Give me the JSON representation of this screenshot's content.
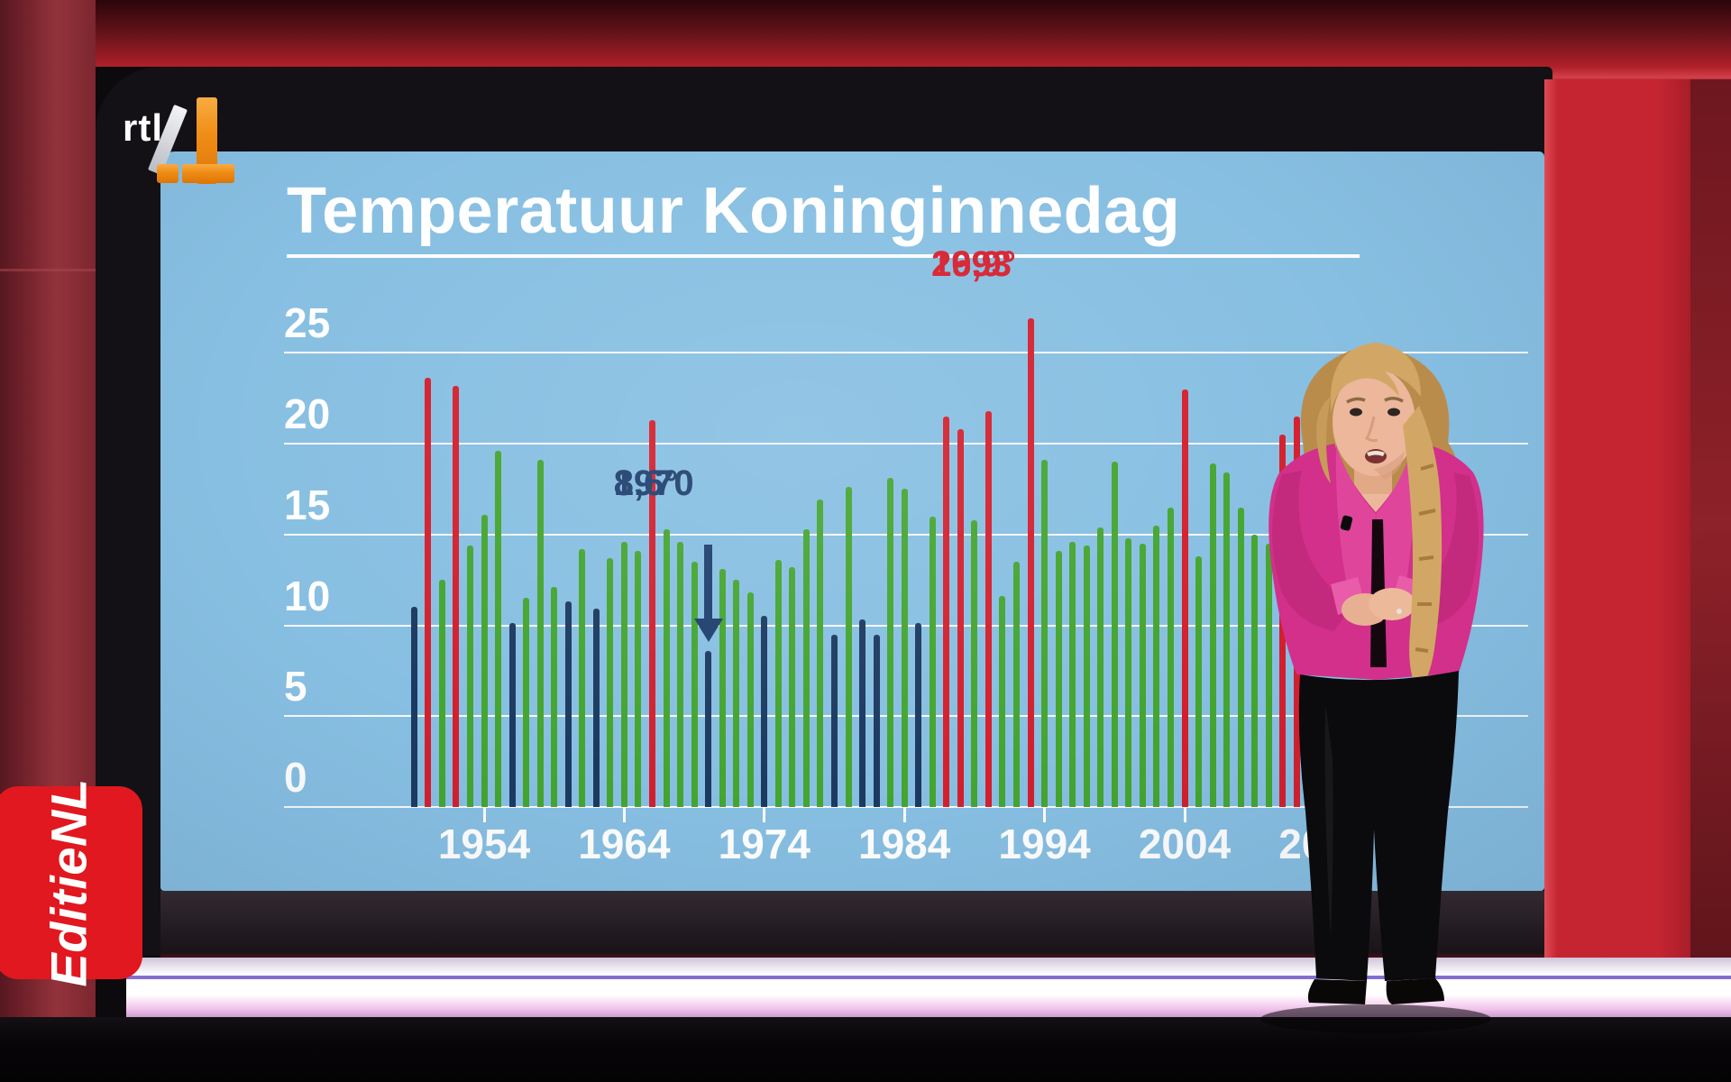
{
  "broadcast": {
    "channel_logo": {
      "text": "rtl",
      "number": "4",
      "orange": "#ef8c15"
    },
    "program_logo": {
      "text": "EditieNL",
      "red": "#e1181f"
    }
  },
  "chart_data": {
    "type": "bar",
    "title": "Temperatuur Koninginnedag",
    "ylabel": "",
    "xlabel": "",
    "ylim": [
      0,
      30
    ],
    "grid": "horizontal white lines, light-blue background",
    "y_ticks": [
      0,
      5,
      10,
      15,
      20,
      25
    ],
    "x_tick_labels": [
      "1954",
      "1964",
      "1974",
      "1984",
      "1994",
      "2004",
      "2014"
    ],
    "years": [
      1949,
      1950,
      1951,
      1952,
      1953,
      1954,
      1955,
      1956,
      1957,
      1958,
      1959,
      1960,
      1961,
      1962,
      1963,
      1964,
      1965,
      1966,
      1967,
      1968,
      1969,
      1970,
      1971,
      1972,
      1973,
      1974,
      1975,
      1976,
      1977,
      1978,
      1979,
      1980,
      1981,
      1982,
      1983,
      1984,
      1985,
      1986,
      1987,
      1988,
      1989,
      1990,
      1991,
      1992,
      1993,
      1994,
      1995,
      1996,
      1997,
      1998,
      1999,
      2000,
      2001,
      2002,
      2003,
      2004,
      2005,
      2006,
      2007,
      2008,
      2009,
      2010,
      2011,
      2012
    ],
    "values": [
      11.0,
      23.6,
      12.5,
      23.2,
      14.4,
      16.1,
      19.6,
      10.1,
      11.5,
      19.1,
      12.1,
      11.3,
      14.2,
      10.9,
      13.7,
      14.6,
      14.1,
      21.3,
      15.3,
      14.6,
      13.5,
      8.6,
      13.1,
      12.5,
      11.8,
      10.5,
      13.6,
      13.2,
      15.3,
      16.9,
      9.5,
      17.6,
      10.3,
      9.5,
      18.1,
      17.5,
      10.1,
      16.0,
      21.5,
      20.8,
      15.8,
      21.8,
      11.6,
      13.5,
      26.9,
      19.1,
      14.1,
      14.6,
      14.4,
      15.4,
      19.0,
      14.8,
      14.5,
      15.5,
      16.5,
      23.0,
      13.8,
      18.9,
      18.4,
      16.5,
      15.0,
      14.5,
      20.5,
      21.5
    ],
    "colors": [
      "n",
      "r",
      "g",
      "r",
      "g",
      "g",
      "g",
      "n",
      "g",
      "g",
      "g",
      "n",
      "g",
      "n",
      "g",
      "g",
      "g",
      "r",
      "g",
      "g",
      "g",
      "n",
      "g",
      "g",
      "g",
      "n",
      "g",
      "g",
      "g",
      "g",
      "n",
      "g",
      "n",
      "n",
      "g",
      "g",
      "n",
      "g",
      "r",
      "r",
      "g",
      "r",
      "g",
      "g",
      "r",
      "g",
      "g",
      "g",
      "g",
      "g",
      "g",
      "g",
      "g",
      "g",
      "g",
      "r",
      "g",
      "g",
      "g",
      "g",
      "g",
      "g",
      "r",
      "r"
    ],
    "palette": {
      "g": "#44a52f",
      "r": "#d41f2d",
      "n": "#1c3a60"
    },
    "annotations": [
      {
        "year_label": "1993",
        "value_label": "26,9°",
        "kind": "warm"
      },
      {
        "year_label": "1970",
        "value_label": "8,6°",
        "kind": "cold",
        "arrow": "down"
      }
    ],
    "legend": "none"
  },
  "studio": {
    "screen_blue": "#87bfe2",
    "wall_red": "#c42531",
    "led_strip_line": "#5b3dc2"
  }
}
